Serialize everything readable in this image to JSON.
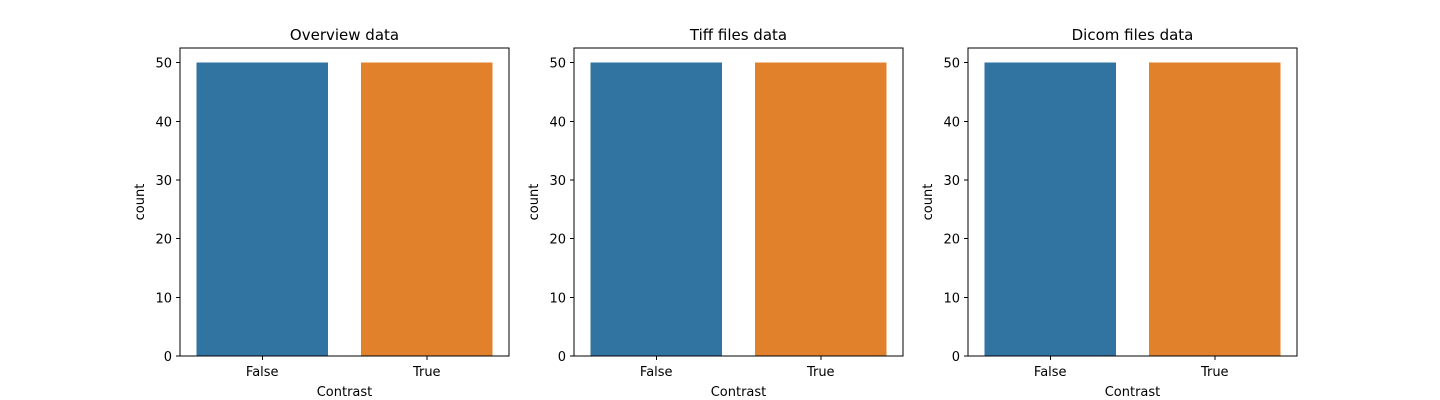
{
  "chart_data": [
    {
      "type": "bar",
      "title": "Overview data",
      "xlabel": "Contrast",
      "ylabel": "count",
      "categories": [
        "False",
        "True"
      ],
      "values": [
        50,
        50
      ],
      "colors": [
        "#3274a1",
        "#e1812c"
      ],
      "ylim": [
        0,
        52.5
      ],
      "yticks": [
        0,
        10,
        20,
        30,
        40,
        50
      ],
      "grid": false
    },
    {
      "type": "bar",
      "title": "Tiff files data",
      "xlabel": "Contrast",
      "ylabel": "count",
      "categories": [
        "False",
        "True"
      ],
      "values": [
        50,
        50
      ],
      "colors": [
        "#3274a1",
        "#e1812c"
      ],
      "ylim": [
        0,
        52.5
      ],
      "yticks": [
        0,
        10,
        20,
        30,
        40,
        50
      ],
      "grid": false
    },
    {
      "type": "bar",
      "title": "Dicom files data",
      "xlabel": "Contrast",
      "ylabel": "count",
      "categories": [
        "False",
        "True"
      ],
      "values": [
        50,
        50
      ],
      "colors": [
        "#3274a1",
        "#e1812c"
      ],
      "ylim": [
        0,
        52.5
      ],
      "yticks": [
        0,
        10,
        20,
        30,
        40,
        50
      ],
      "grid": false
    }
  ]
}
